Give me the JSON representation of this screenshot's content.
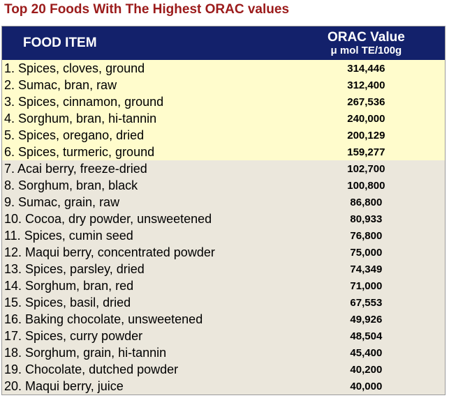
{
  "title": "Top 20 Foods With The Highest ORAC values",
  "colors": {
    "title": "#9b1b1b",
    "header_bg": "#13216b",
    "header_text": "#ffffff",
    "top_group_bg": "#fffccc",
    "rest_group_bg": "#ebe7dc"
  },
  "header": {
    "item_label": "FOOD ITEM",
    "value_label": "ORAC Value",
    "value_unit": "μ mol TE/100g"
  },
  "rows": [
    {
      "item": "1. Spices, cloves, ground",
      "value": "314,446",
      "group": "a"
    },
    {
      "item": "2. Sumac, bran, raw",
      "value": "312,400",
      "group": "a"
    },
    {
      "item": "3. Spices, cinnamon, ground",
      "value": "267,536",
      "group": "a"
    },
    {
      "item": "4. Sorghum, bran, hi-tannin",
      "value": "240,000",
      "group": "a"
    },
    {
      "item": "5. Spices, oregano, dried",
      "value": "200,129",
      "group": "a"
    },
    {
      "item": "6. Spices, turmeric, ground",
      "value": "159,277",
      "group": "a"
    },
    {
      "item": "7. Acai berry, freeze-dried",
      "value": "102,700",
      "group": "b"
    },
    {
      "item": "8. Sorghum, bran, black",
      "value": "100,800",
      "group": "b"
    },
    {
      "item": "9. Sumac, grain, raw",
      "value": "86,800",
      "group": "b"
    },
    {
      "item": "10. Cocoa, dry powder, unsweetened",
      "value": "80,933",
      "group": "b"
    },
    {
      "item": "11. Spices, cumin seed",
      "value": "76,800",
      "group": "b"
    },
    {
      "item": "12. Maqui berry, concentrated powder",
      "value": "75,000",
      "group": "b"
    },
    {
      "item": "13. Spices, parsley, dried",
      "value": "74,349",
      "group": "b"
    },
    {
      "item": "14. Sorghum, bran, red",
      "value": "71,000",
      "group": "b"
    },
    {
      "item": "15. Spices, basil, dried",
      "value": "67,553",
      "group": "b"
    },
    {
      "item": "16. Baking chocolate, unsweetened",
      "value": "49,926",
      "group": "b"
    },
    {
      "item": "17. Spices, curry powder",
      "value": "48,504",
      "group": "b"
    },
    {
      "item": "18. Sorghum, grain, hi-tannin",
      "value": "45,400",
      "group": "b"
    },
    {
      "item": "19. Chocolate, dutched powder",
      "value": "40,200",
      "group": "b"
    },
    {
      "item": "20. Maqui berry, juice",
      "value": "40,000",
      "group": "b"
    }
  ],
  "chart_data": {
    "type": "table",
    "title": "Top 20 Foods With The Highest ORAC values",
    "columns": [
      "FOOD ITEM",
      "ORAC Value μ mol TE/100g"
    ],
    "categories": [
      "1. Spices, cloves, ground",
      "2. Sumac, bran, raw",
      "3. Spices, cinnamon, ground",
      "4. Sorghum, bran, hi-tannin",
      "5. Spices, oregano, dried",
      "6. Spices, turmeric, ground",
      "7. Acai berry, freeze-dried",
      "8. Sorghum, bran, black",
      "9. Sumac, grain, raw",
      "10. Cocoa, dry powder, unsweetened",
      "11. Spices, cumin seed",
      "12. Maqui berry, concentrated powder",
      "13. Spices, parsley, dried",
      "14. Sorghum, bran, red",
      "15. Spices, basil, dried",
      "16. Baking chocolate, unsweetened",
      "17. Spices, curry powder",
      "18. Sorghum, grain, hi-tannin",
      "19. Chocolate, dutched powder",
      "20. Maqui berry, juice"
    ],
    "values": [
      314446,
      312400,
      267536,
      240000,
      200129,
      159277,
      102700,
      100800,
      86800,
      80933,
      76800,
      75000,
      74349,
      71000,
      67553,
      49926,
      48504,
      45400,
      40200,
      40000
    ]
  }
}
